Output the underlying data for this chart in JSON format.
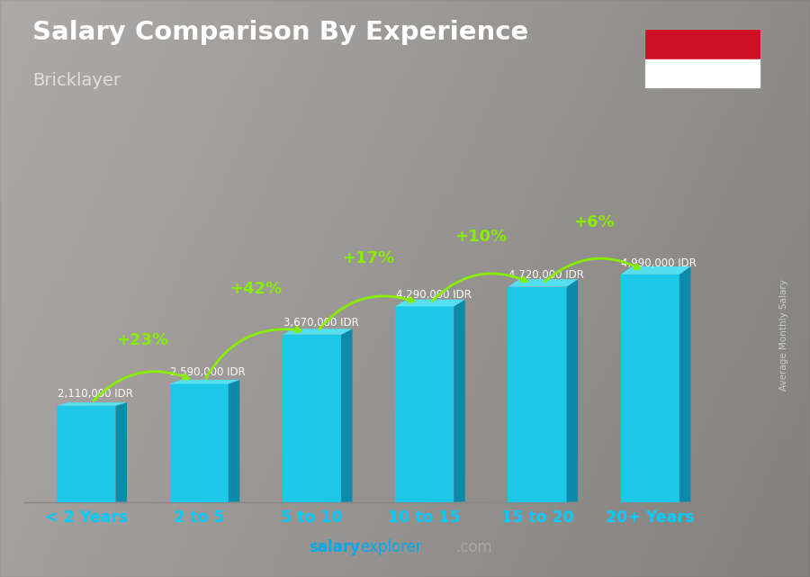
{
  "title": "Salary Comparison By Experience",
  "subtitle": "Bricklayer",
  "categories": [
    "< 2 Years",
    "2 to 5",
    "5 to 10",
    "10 to 15",
    "15 to 20",
    "20+ Years"
  ],
  "values": [
    2110000,
    2590000,
    3670000,
    4290000,
    4720000,
    4990000
  ],
  "salary_labels": [
    "2,110,000 IDR",
    "2,590,000 IDR",
    "3,670,000 IDR",
    "4,290,000 IDR",
    "4,720,000 IDR",
    "4,990,000 IDR"
  ],
  "pct_labels": [
    "+23%",
    "+42%",
    "+17%",
    "+10%",
    "+6%"
  ],
  "bar_front_color": "#1ec8e8",
  "bar_top_color": "#55dff0",
  "bar_side_color": "#0d8aaa",
  "bg_left_color": "#c8c8c8",
  "bg_right_color": "#909090",
  "title_color": "#ffffff",
  "subtitle_color": "#e0e0e0",
  "cat_label_color": "#00ccff",
  "salary_label_color": "#ffffff",
  "pct_color": "#88ee00",
  "arrow_color": "#88ee00",
  "footer_salary_color": "#00aaee",
  "footer_explorer_color": "#ffffff",
  "footer_dot_com_color": "#888888",
  "ylabel_text": "Average Monthly Salary",
  "ylabel_color": "#cccccc",
  "flag_red": "#ce1126",
  "flag_white": "#ffffff",
  "spine_color": "#888888"
}
